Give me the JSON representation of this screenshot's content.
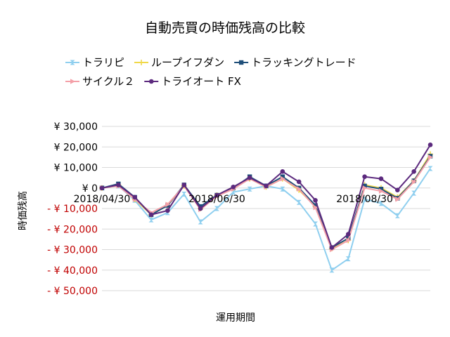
{
  "chart_data": {
    "type": "line",
    "title": "自動売買の時価残高の比較",
    "xlabel": "運用期間",
    "ylabel": "時価残高",
    "ylim": [
      -50000,
      30000
    ],
    "y_ticks": [
      {
        "value": 30000,
        "label": "¥ 30,000",
        "color": "#000000"
      },
      {
        "value": 20000,
        "label": "¥ 20,000",
        "color": "#000000"
      },
      {
        "value": 10000,
        "label": "¥ 10,000",
        "color": "#000000"
      },
      {
        "value": 0,
        "label": "¥ 0",
        "color": "#000000"
      },
      {
        "value": -10000,
        "label": "- ¥ 10,000",
        "color": "#c00000"
      },
      {
        "value": -20000,
        "label": "- ¥ 20,000",
        "color": "#c00000"
      },
      {
        "value": -30000,
        "label": "- ¥ 30,000",
        "color": "#c00000"
      },
      {
        "value": -40000,
        "label": "- ¥ 40,000",
        "color": "#c00000"
      },
      {
        "value": -50000,
        "label": "- ¥ 50,000",
        "color": "#c00000"
      }
    ],
    "x_labels": [
      {
        "index": 0,
        "label": "2018/04/30"
      },
      {
        "index": 7,
        "label": "2018/06/30"
      },
      {
        "index": 16,
        "label": "2018/08/30"
      }
    ],
    "grid": true,
    "legend_position": "top",
    "series": [
      {
        "name": "トラリピ",
        "color": "#8fcfef",
        "marker": "hourglass",
        "values": [
          0,
          1000,
          -6000,
          -15500,
          -12000,
          -3000,
          -16500,
          -10000,
          -2000,
          -500,
          1000,
          -500,
          -7000,
          -17500,
          -40000,
          -34500,
          -5500,
          -7500,
          -13500,
          -2500,
          9500
        ]
      },
      {
        "name": "ループイフダン",
        "color": "#f0d848",
        "marker": "plus",
        "values": [
          0,
          1500,
          -5500,
          -13000,
          -8500,
          1000,
          -10000,
          -3500,
          0,
          4500,
          500,
          4500,
          -1000,
          -9000,
          -29500,
          -25500,
          1500,
          0,
          -4500,
          3500,
          16500
        ]
      },
      {
        "name": "トラッキングトレード",
        "color": "#1f4e79",
        "marker": "square",
        "values": [
          0,
          2000,
          -4500,
          -13000,
          -8500,
          1500,
          -9000,
          -3500,
          0,
          5500,
          1000,
          5500,
          0,
          -8500,
          -29000,
          -24500,
          1000,
          -500,
          -5000,
          3500,
          15500
        ]
      },
      {
        "name": "サイクル２",
        "color": "#f4a0a8",
        "marker": "triangle",
        "values": [
          0,
          1000,
          -5500,
          -12000,
          -8000,
          1000,
          -10500,
          -4000,
          -500,
          4500,
          500,
          4500,
          -500,
          -9500,
          -30000,
          -25500,
          0,
          -1500,
          -5500,
          3000,
          15000
        ]
      },
      {
        "name": "トライオート FX",
        "color": "#5c2a7e",
        "marker": "circle",
        "values": [
          0,
          1500,
          -4500,
          -13000,
          -11000,
          1500,
          -10000,
          -3500,
          500,
          5000,
          1000,
          8000,
          3000,
          -6000,
          -29000,
          -22500,
          5500,
          4500,
          -1000,
          8000,
          21000
        ]
      }
    ]
  }
}
